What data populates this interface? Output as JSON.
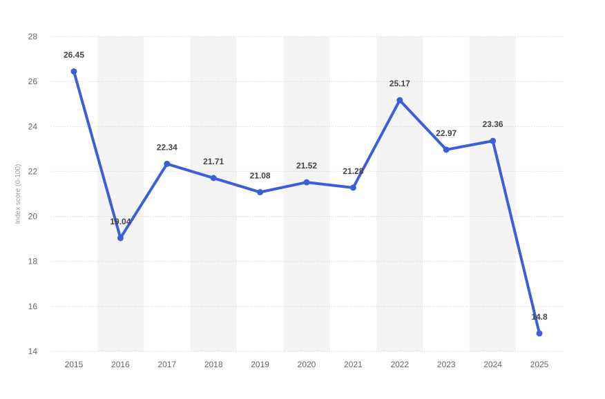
{
  "chart_data": {
    "type": "line",
    "title": "",
    "xlabel": "",
    "ylabel": "Index score (0-100)",
    "x": [
      "2015",
      "2016",
      "2017",
      "2018",
      "2019",
      "2020",
      "2021",
      "2022",
      "2023",
      "2024",
      "2025"
    ],
    "series": [
      {
        "values": [
          26.45,
          19.04,
          22.34,
          21.71,
          21.08,
          21.52,
          21.28,
          25.17,
          22.97,
          23.36,
          14.8
        ],
        "labels": [
          "26.45",
          "19.04",
          "22.34",
          "21.71",
          "21.08",
          "21.52",
          "21.28",
          "25.17",
          "22.97",
          "23.36",
          "14.8"
        ],
        "color": "#3a5fd9"
      }
    ],
    "ylim": [
      14,
      28
    ],
    "yticks": [
      "14",
      "16",
      "18",
      "20",
      "22",
      "24",
      "26",
      "28"
    ],
    "grid": true,
    "legend": "none",
    "band_color": "#f4f4f4"
  }
}
